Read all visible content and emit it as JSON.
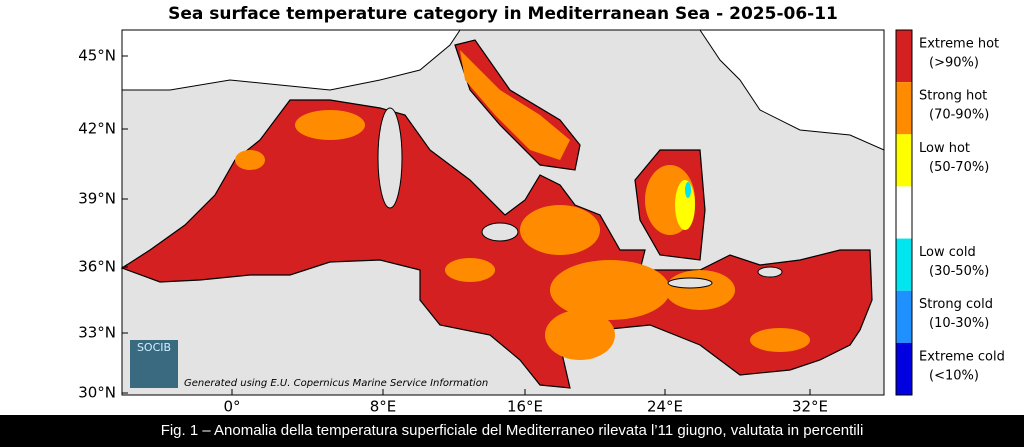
{
  "title": "Sea surface temperature category in Mediterranean Sea - 2025-06-11",
  "lat_labels": [
    "45°N",
    "42°N",
    "39°N",
    "36°N",
    "33°N",
    "30°N"
  ],
  "lon_labels": [
    "0°",
    "8°E",
    "16°E",
    "24°E",
    "32°E"
  ],
  "legend": [
    {
      "label": "Extreme hot",
      "range": "(>90%)",
      "color": "#d42020"
    },
    {
      "label": "Strong hot",
      "range": "(70-90%)",
      "color": "#ff8c00"
    },
    {
      "label": "Low hot",
      "range": "(50-70%)",
      "color": "#ffff00"
    },
    {
      "color": "#ffffff"
    },
    {
      "label": "Low cold",
      "range": "(30-50%)",
      "color": "#00e5ee"
    },
    {
      "label": "Strong cold",
      "range": "(10-30%)",
      "color": "#1e90ff"
    },
    {
      "label": "Extreme cold",
      "range": "(<10%)",
      "color": "#0000e0"
    }
  ],
  "logo": "SOCIB",
  "credit": "Generated using E.U. Copernicus Marine Service Information",
  "caption": "Fig. 1 – Anomalia della temperatura superficiale del Mediterraneo rilevata l’11 giugno, valutata in percentili"
}
